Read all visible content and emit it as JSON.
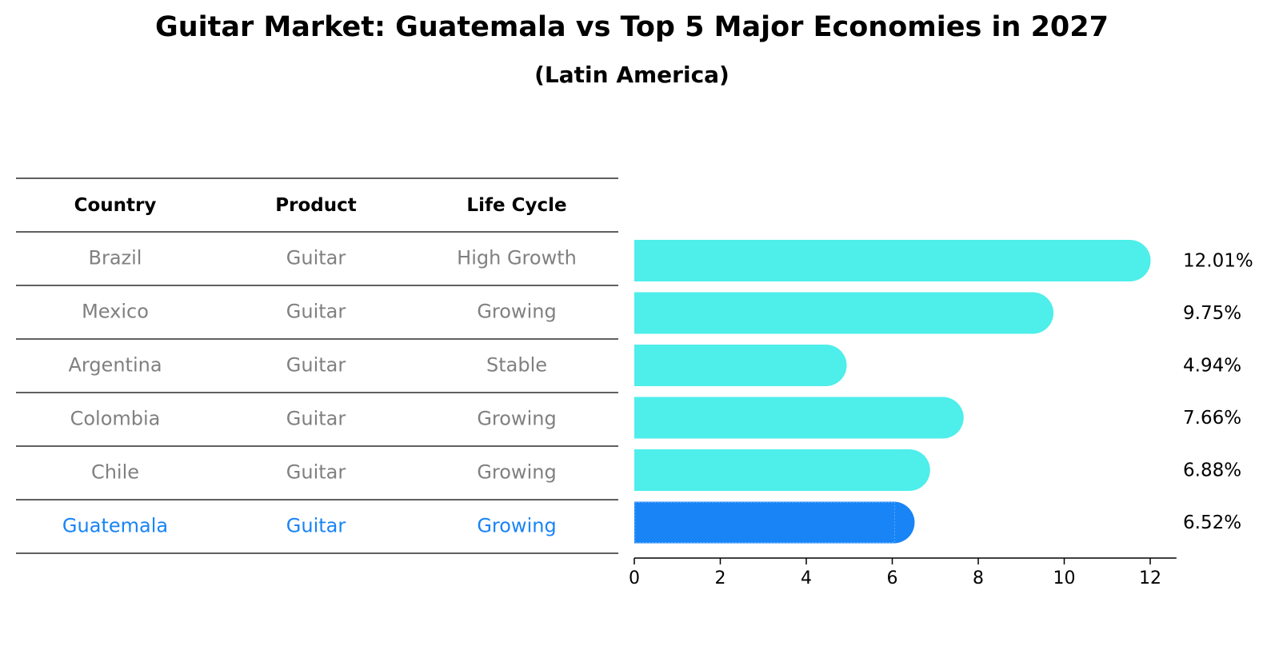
{
  "chart_data": {
    "type": "bar",
    "orientation": "horizontal",
    "title": "Guitar Market: Guatemala vs Top 5 Major Economies in 2027",
    "subtitle": "(Latin America)",
    "table_headers": [
      "Country",
      "Product",
      "Life Cycle"
    ],
    "rows": [
      {
        "country": "Brazil",
        "product": "Guitar",
        "life_cycle": "High Growth",
        "value": 12.01,
        "label": "12.01%",
        "highlight": false
      },
      {
        "country": "Mexico",
        "product": "Guitar",
        "life_cycle": "Growing",
        "value": 9.75,
        "label": "9.75%",
        "highlight": false
      },
      {
        "country": "Argentina",
        "product": "Guitar",
        "life_cycle": "Stable",
        "value": 4.94,
        "label": "4.94%",
        "highlight": false
      },
      {
        "country": "Colombia",
        "product": "Guitar",
        "life_cycle": "Growing",
        "value": 7.66,
        "label": "7.66%",
        "highlight": false
      },
      {
        "country": "Chile",
        "product": "Guitar",
        "life_cycle": "Growing",
        "value": 6.88,
        "label": "6.88%",
        "highlight": false
      },
      {
        "country": "Guatemala",
        "product": "Guitar",
        "life_cycle": "Growing",
        "value": 6.52,
        "label": "6.52%",
        "highlight": true
      }
    ],
    "xlim": [
      0,
      12.61
    ],
    "xticks": [
      0,
      2,
      4,
      6,
      8,
      10,
      12
    ],
    "colors": {
      "bar": "#4EEEEA",
      "highlight_bar": "#1884F6",
      "muted_text": "#808080",
      "highlight_text": "#1884F6",
      "line": "#000000"
    }
  }
}
